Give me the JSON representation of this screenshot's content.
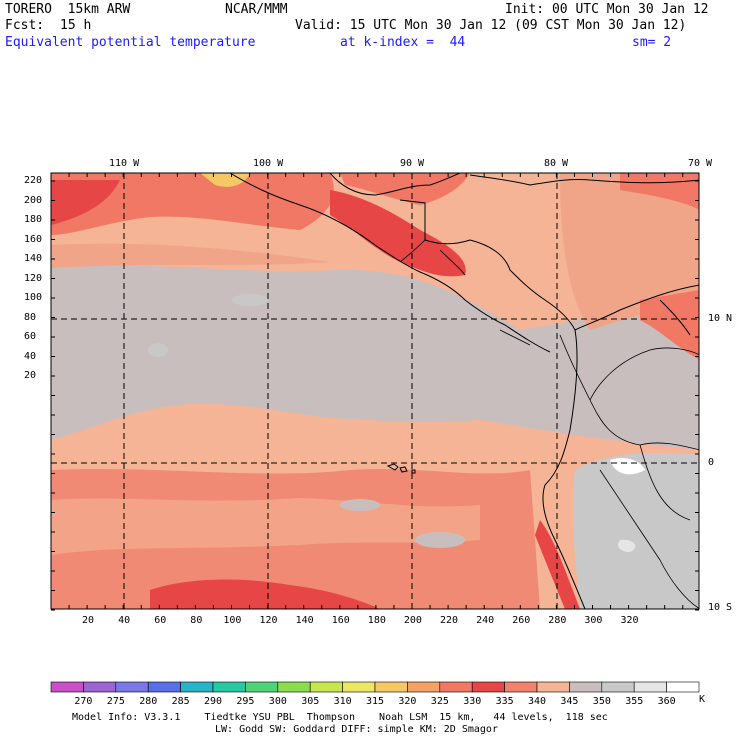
{
  "header": {
    "model": "TORERO  15km ARW",
    "center": "NCAR/MMM",
    "init": "Init: 00 UTC Mon 30 Jan 12",
    "fcst_label": "Fcst:",
    "fcst_value": "15 h",
    "valid": "Valid: 15 UTC Mon 30 Jan 12 (09 CST Mon 30 Jan 12)",
    "field": "Equivalent potential temperature",
    "level": "at k-index =  44",
    "smoothing": "sm= 2"
  },
  "map": {
    "top_lon_labels": [
      "110 W",
      "100 W",
      "90 W",
      "80 W",
      "70 W"
    ],
    "right_lat_labels": [
      "10 N",
      "0",
      "10 S"
    ],
    "y_grid_ticks": [
      "220",
      "200",
      "180",
      "160",
      "140",
      "120",
      "100",
      "80",
      "60",
      "40",
      "20"
    ],
    "x_grid_ticks": [
      "20",
      "40",
      "60",
      "80",
      "100",
      "120",
      "140",
      "160",
      "180",
      "200",
      "220",
      "240",
      "260",
      "280",
      "300",
      "320"
    ]
  },
  "colorbar": {
    "labels": [
      "270",
      "275",
      "280",
      "285",
      "290",
      "295",
      "300",
      "305",
      "310",
      "315",
      "320",
      "325",
      "330",
      "335",
      "340",
      "345",
      "350",
      "355",
      "360"
    ],
    "unit": "K",
    "colors": [
      "#c84fc8",
      "#9a64d2",
      "#7a78e6",
      "#5a6ee6",
      "#28b4c8",
      "#28c8a0",
      "#50d278",
      "#8cdc50",
      "#c8e650",
      "#ebe664",
      "#f5c864",
      "#f5a064",
      "#f07864",
      "#e64646",
      "#f0826e",
      "#f5b496",
      "#c8bebe",
      "#c8c8c8",
      "#e6e6e6",
      "#ffffff"
    ]
  },
  "footer": {
    "line1": "Model Info: V3.3.1    Tiedtke YSU PBL  Thompson    Noah LSM  15 km,   44 levels,  118 sec",
    "line2": "LW: Godd SW: Goddard DIFF: simple KM: 2D Smagor"
  }
}
